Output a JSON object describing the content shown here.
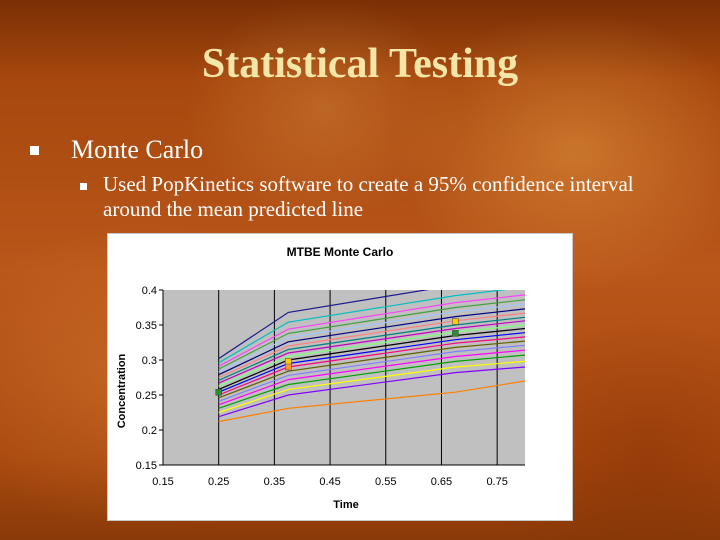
{
  "slide": {
    "title": "Statistical Testing",
    "bullet1": "Monte Carlo",
    "bullet2": "Used PopKinetics software to create a 95% confidence interval around the mean predicted line"
  },
  "colors": {
    "background": "#b5531a",
    "title": "#f5e6a8",
    "text": "#ffffff",
    "plot_area": "#c0c0c0"
  },
  "chart_data": {
    "type": "line",
    "title": "MTBE Monte Carlo",
    "xlabel": "Time",
    "ylabel": "Concentration",
    "xlim": [
      0.15,
      0.8
    ],
    "ylim": [
      0.15,
      0.4
    ],
    "x_ticks": [
      "0.15",
      "0.25",
      "0.35",
      "0.45",
      "0.55",
      "0.65",
      "0.75"
    ],
    "y_ticks": [
      "0.4",
      "0.35",
      "0.3",
      "0.25",
      "0.2",
      "0.15"
    ],
    "grid": "vertical",
    "legend": "none",
    "series": [
      {
        "color": "#1a1a8c",
        "values": [
          [
            0.25,
            0.302
          ],
          [
            0.375,
            0.368
          ],
          [
            0.675,
            0.407
          ],
          [
            0.8,
            0.415
          ]
        ]
      },
      {
        "color": "#00c0c0",
        "values": [
          [
            0.25,
            0.296
          ],
          [
            0.375,
            0.354
          ],
          [
            0.675,
            0.392
          ],
          [
            0.8,
            0.404
          ]
        ]
      },
      {
        "color": "#ff40ff",
        "values": [
          [
            0.25,
            0.291
          ],
          [
            0.375,
            0.344
          ],
          [
            0.675,
            0.382
          ],
          [
            0.8,
            0.393
          ]
        ]
      },
      {
        "color": "#40a040",
        "values": [
          [
            0.25,
            0.287
          ],
          [
            0.375,
            0.338
          ],
          [
            0.675,
            0.375
          ],
          [
            0.8,
            0.386
          ]
        ]
      },
      {
        "color": "#a0c8ff",
        "values": [
          [
            0.25,
            0.283
          ],
          [
            0.375,
            0.332
          ],
          [
            0.675,
            0.369
          ],
          [
            0.8,
            0.38
          ]
        ]
      },
      {
        "color": "#000080",
        "values": [
          [
            0.25,
            0.279
          ],
          [
            0.375,
            0.326
          ],
          [
            0.675,
            0.362
          ],
          [
            0.8,
            0.373
          ]
        ]
      },
      {
        "color": "#ff8080",
        "values": [
          [
            0.25,
            0.275
          ],
          [
            0.375,
            0.32
          ],
          [
            0.675,
            0.356
          ],
          [
            0.8,
            0.367
          ]
        ]
      },
      {
        "color": "#008080",
        "values": [
          [
            0.25,
            0.271
          ],
          [
            0.375,
            0.315
          ],
          [
            0.675,
            0.35
          ],
          [
            0.8,
            0.361
          ]
        ]
      },
      {
        "color": "#c000c0",
        "values": [
          [
            0.25,
            0.267
          ],
          [
            0.375,
            0.31
          ],
          [
            0.675,
            0.345
          ],
          [
            0.8,
            0.356
          ]
        ]
      },
      {
        "color": "#80ff80",
        "values": [
          [
            0.25,
            0.263
          ],
          [
            0.375,
            0.305
          ],
          [
            0.675,
            0.34
          ],
          [
            0.8,
            0.35
          ]
        ]
      },
      {
        "color": "#000000",
        "values": [
          [
            0.25,
            0.258
          ],
          [
            0.375,
            0.3
          ],
          [
            0.675,
            0.335
          ],
          [
            0.8,
            0.345
          ]
        ]
      },
      {
        "color": "#0000ff",
        "values": [
          [
            0.25,
            0.254
          ],
          [
            0.375,
            0.295
          ],
          [
            0.675,
            0.329
          ],
          [
            0.8,
            0.339
          ]
        ]
      },
      {
        "color": "#ff0080",
        "values": [
          [
            0.25,
            0.25
          ],
          [
            0.375,
            0.29
          ],
          [
            0.675,
            0.324
          ],
          [
            0.8,
            0.333
          ]
        ]
      },
      {
        "color": "#606000",
        "values": [
          [
            0.25,
            0.246
          ],
          [
            0.375,
            0.284
          ],
          [
            0.675,
            0.318
          ],
          [
            0.8,
            0.327
          ]
        ]
      },
      {
        "color": "#8080ff",
        "values": [
          [
            0.25,
            0.241
          ],
          [
            0.375,
            0.278
          ],
          [
            0.675,
            0.312
          ],
          [
            0.8,
            0.321
          ]
        ]
      },
      {
        "color": "#ff00ff",
        "values": [
          [
            0.25,
            0.236
          ],
          [
            0.375,
            0.272
          ],
          [
            0.675,
            0.305
          ],
          [
            0.8,
            0.314
          ]
        ]
      },
      {
        "color": "#00a000",
        "values": [
          [
            0.25,
            0.231
          ],
          [
            0.375,
            0.265
          ],
          [
            0.675,
            0.298
          ],
          [
            0.8,
            0.307
          ]
        ]
      },
      {
        "color": "#ffff00",
        "values": [
          [
            0.25,
            0.225
          ],
          [
            0.375,
            0.258
          ],
          [
            0.675,
            0.29
          ],
          [
            0.8,
            0.298
          ]
        ]
      },
      {
        "color": "#8000ff",
        "values": [
          [
            0.25,
            0.219
          ],
          [
            0.375,
            0.25
          ],
          [
            0.675,
            0.282
          ],
          [
            0.8,
            0.29
          ]
        ]
      },
      {
        "color": "#ff8000",
        "values": [
          [
            0.25,
            0.212
          ],
          [
            0.375,
            0.231
          ],
          [
            0.675,
            0.254
          ],
          [
            0.8,
            0.27
          ]
        ]
      }
    ],
    "observed_points": [
      {
        "color": "#2e8b2e",
        "x": 0.25,
        "y": 0.254
      },
      {
        "color": "#ffcc00",
        "x": 0.375,
        "y": 0.298
      },
      {
        "color": "#ff9933",
        "x": 0.375,
        "y": 0.29
      },
      {
        "color": "#ffcc00",
        "x": 0.675,
        "y": 0.355
      },
      {
        "color": "#2e8b2e",
        "x": 0.675,
        "y": 0.338
      }
    ]
  }
}
